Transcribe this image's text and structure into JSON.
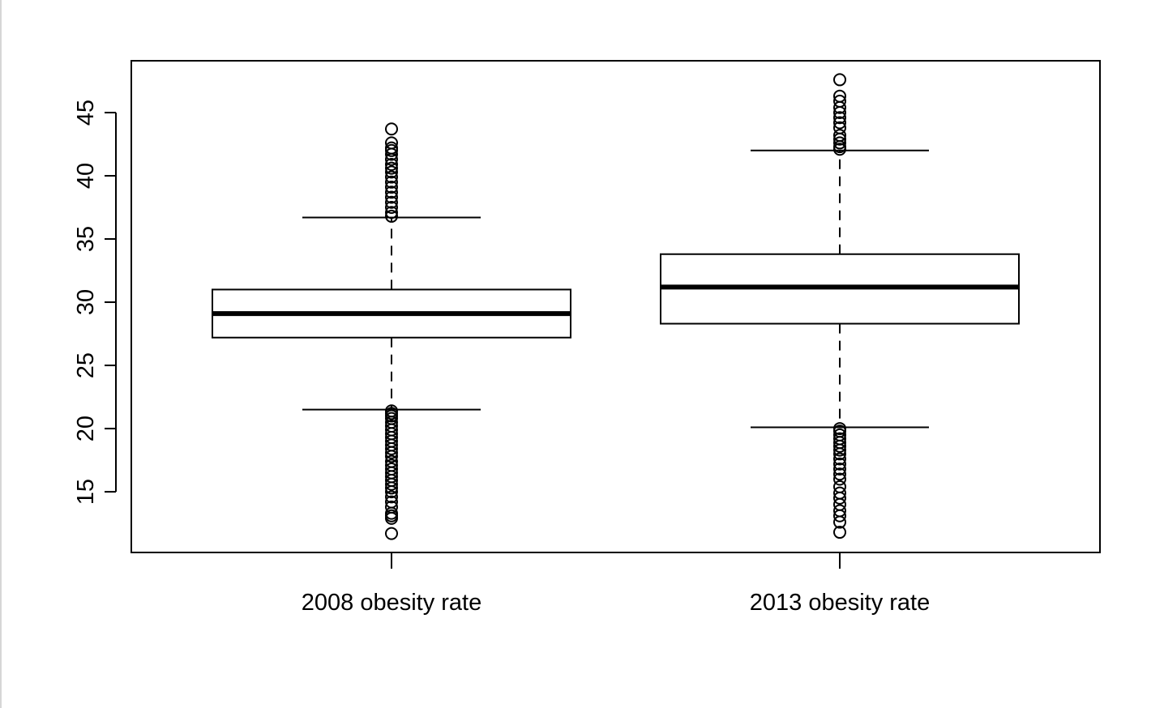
{
  "chart_data": {
    "type": "box",
    "title": "",
    "xlabel": "",
    "ylabel": "",
    "ylim": [
      10.2,
      49.1
    ],
    "yticks": [
      15,
      20,
      25,
      30,
      35,
      40,
      45
    ],
    "categories": [
      "2008 obesity rate",
      "2013 obesity rate"
    ],
    "boxes": [
      {
        "label": "2008 obesity rate",
        "whisker_low": 21.5,
        "q1": 27.2,
        "median": 29.1,
        "q3": 31.0,
        "whisker_high": 36.7,
        "outliers": [
          11.7,
          12.9,
          13.1,
          13.3,
          13.8,
          14.2,
          14.6,
          15.0,
          15.3,
          15.6,
          15.9,
          16.2,
          16.5,
          16.8,
          17.1,
          17.4,
          17.8,
          18.1,
          18.4,
          18.7,
          19.0,
          19.3,
          19.6,
          19.9,
          20.2,
          20.5,
          20.8,
          21.0,
          21.2,
          21.4,
          36.8,
          37.1,
          37.5,
          37.9,
          38.3,
          38.7,
          39.1,
          39.5,
          39.9,
          40.3,
          40.6,
          40.9,
          41.3,
          41.7,
          42.0,
          42.2,
          42.6,
          43.7
        ]
      },
      {
        "label": "2013 obesity rate",
        "whisker_low": 20.1,
        "q1": 28.3,
        "median": 31.2,
        "q3": 33.8,
        "whisker_high": 42.0,
        "outliers": [
          11.8,
          12.6,
          13.1,
          13.5,
          14.0,
          14.5,
          14.9,
          15.4,
          16.0,
          16.4,
          16.8,
          17.2,
          17.6,
          18.0,
          18.3,
          18.6,
          18.9,
          19.2,
          19.5,
          19.8,
          20.0,
          42.1,
          42.3,
          42.6,
          42.9,
          43.2,
          43.8,
          44.2,
          44.6,
          45.0,
          45.4,
          45.9,
          46.3,
          47.6
        ]
      }
    ],
    "colors": {
      "stroke": "#000000",
      "background": "#ffffff"
    }
  }
}
